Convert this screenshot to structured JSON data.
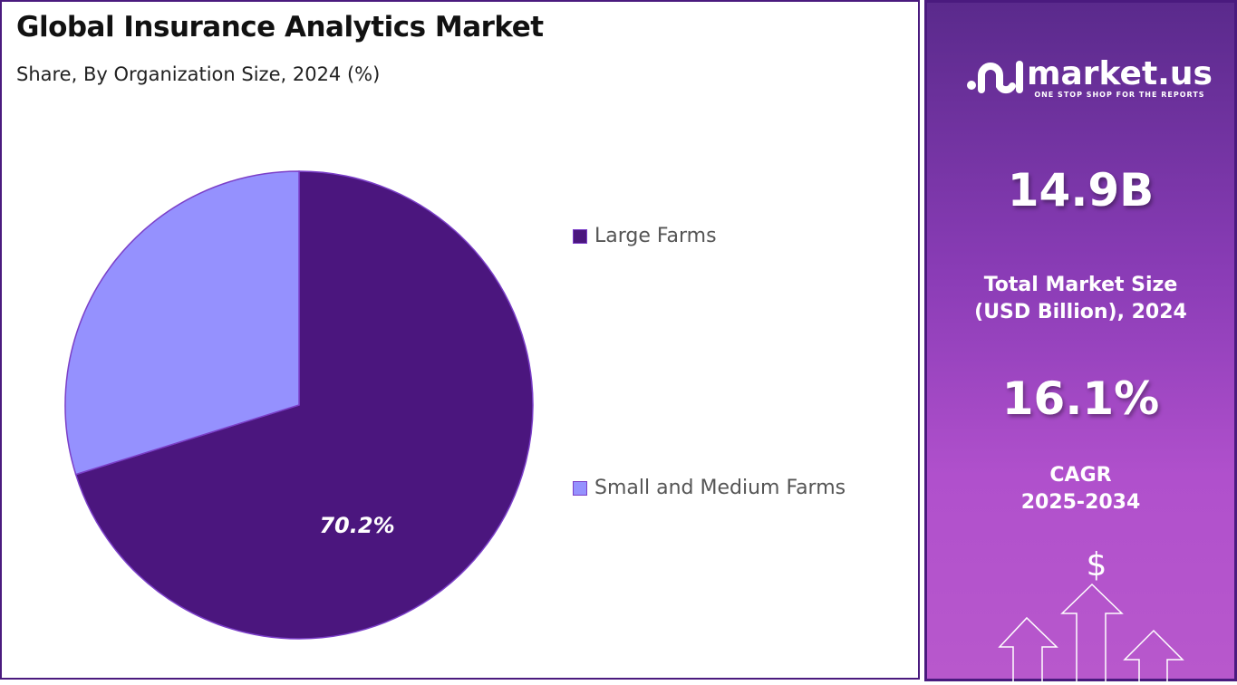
{
  "header": {
    "title": "Global Insurance Analytics Market",
    "subtitle": "Share, By Organization Size, 2024 (%)"
  },
  "chart_data": {
    "type": "pie",
    "categories": [
      "Large Farms",
      "Small and Medium Farms"
    ],
    "values": [
      70.2,
      29.8
    ],
    "colors": [
      "#4b167e",
      "#9591fe"
    ],
    "data_labels": [
      "70.2%",
      ""
    ],
    "legend_position": "right"
  },
  "sidebar": {
    "brand": "market.us",
    "tagline": "ONE STOP SHOP FOR THE REPORTS",
    "market_size": "14.9B",
    "market_size_label_1": "Total Market Size",
    "market_size_label_2": "(USD Billion), 2024",
    "cagr": "16.1%",
    "cagr_label_1": "CAGR",
    "cagr_label_2": "2025-2034",
    "icon": "dollar-growth-arrows-icon"
  }
}
